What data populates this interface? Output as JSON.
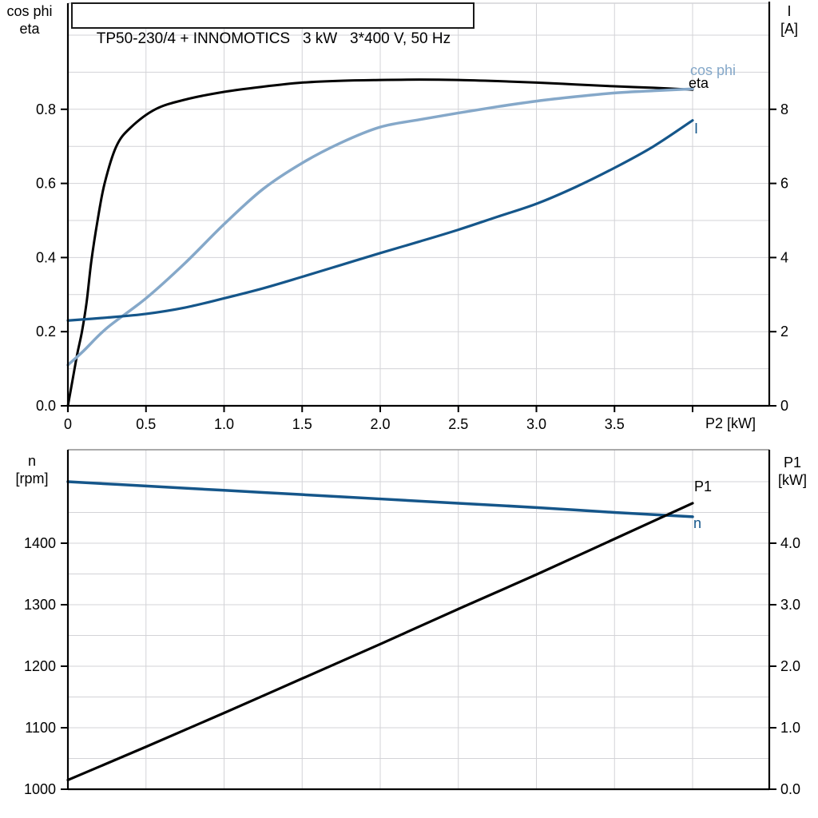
{
  "title": "TP50-230/4 + INNOMOTICS   3 kW   3*400 V, 50 Hz",
  "colors": {
    "black": "#000000",
    "light_blue": "#85a8c9",
    "dark_blue": "#15568a",
    "gridline": "#d3d3d7",
    "frame_gray": "#8e8e8e",
    "axis": "#000000"
  },
  "top_chart": {
    "left_axis_label": [
      "cos phi",
      "eta"
    ],
    "right_axis_label": [
      "I",
      "[A]"
    ],
    "x_axis_label": "P2 [kW]",
    "left_tick_labels": [
      "0.0",
      "0.2",
      "0.4",
      "0.6",
      "0.8"
    ],
    "left_tick_values": [
      0.0,
      0.2,
      0.4,
      0.6,
      0.8
    ],
    "right_tick_labels": [
      "0",
      "2",
      "4",
      "6",
      "8"
    ],
    "right_tick_values": [
      0,
      2,
      4,
      6,
      8
    ],
    "x_tick_labels": [
      "0",
      "0.5",
      "1.0",
      "1.5",
      "2.0",
      "2.5",
      "3.0",
      "3.5",
      ""
    ],
    "x_tick_values": [
      0,
      0.5,
      1.0,
      1.5,
      2.0,
      2.5,
      3.0,
      3.5,
      4.0
    ],
    "curve_labels": {
      "cos_phi": "cos phi",
      "eta": "eta",
      "current": "I"
    }
  },
  "bottom_chart": {
    "left_axis_label": [
      "n",
      "[rpm]"
    ],
    "right_axis_label": [
      "P1",
      "[kW]"
    ],
    "left_tick_labels": [
      "1000",
      "1100",
      "1200",
      "1300",
      "1400"
    ],
    "left_tick_values": [
      1000,
      1100,
      1200,
      1300,
      1400
    ],
    "right_tick_labels": [
      "0.0",
      "1.0",
      "2.0",
      "3.0",
      "4.0"
    ],
    "right_tick_values": [
      0,
      1,
      2,
      3,
      4
    ],
    "curve_labels": {
      "p1": "P1",
      "n": "n"
    }
  },
  "chart_data": [
    {
      "type": "line",
      "title": "TP50-230/4 + INNOMOTICS   3 kW   3*400 V, 50 Hz",
      "xlabel": "P2 [kW]",
      "xlim": [
        0,
        4.49
      ],
      "left_axis": {
        "label": "cos phi / eta",
        "lim": [
          0,
          1.086
        ],
        "ticks": [
          0,
          0.2,
          0.4,
          0.6,
          0.8
        ],
        "grid_step": 0.1
      },
      "right_axis": {
        "label": "I [A]",
        "lim": [
          0,
          10.86
        ],
        "ticks": [
          0,
          2,
          4,
          6,
          8
        ]
      },
      "x_grid_step": 0.5,
      "grid": true,
      "series": [
        {
          "name": "eta",
          "axis": "left",
          "color": "#000000",
          "width": 3,
          "points": [
            [
              0,
              0
            ],
            [
              0.03,
              0.07
            ],
            [
              0.06,
              0.14
            ],
            [
              0.09,
              0.2
            ],
            [
              0.12,
              0.28
            ],
            [
              0.15,
              0.39
            ],
            [
              0.19,
              0.5
            ],
            [
              0.235,
              0.6
            ],
            [
              0.31,
              0.7
            ],
            [
              0.4,
              0.75
            ],
            [
              0.56,
              0.8
            ],
            [
              0.75,
              0.826
            ],
            [
              1.0,
              0.847
            ],
            [
              1.25,
              0.861
            ],
            [
              1.5,
              0.872
            ],
            [
              1.75,
              0.877
            ],
            [
              2.0,
              0.879
            ],
            [
              2.25,
              0.88
            ],
            [
              2.5,
              0.879
            ],
            [
              2.75,
              0.876
            ],
            [
              3.0,
              0.872
            ],
            [
              3.25,
              0.867
            ],
            [
              3.5,
              0.862
            ],
            [
              3.75,
              0.858
            ],
            [
              4.0,
              0.853
            ]
          ]
        },
        {
          "name": "cos phi",
          "axis": "left",
          "color": "#85a8c9",
          "width": 3.5,
          "points": [
            [
              0,
              0.11
            ],
            [
              0.1,
              0.148
            ],
            [
              0.25,
              0.21
            ],
            [
              0.5,
              0.29
            ],
            [
              0.75,
              0.385
            ],
            [
              1.0,
              0.49
            ],
            [
              1.25,
              0.585
            ],
            [
              1.5,
              0.655
            ],
            [
              1.75,
              0.71
            ],
            [
              2.0,
              0.752
            ],
            [
              2.25,
              0.772
            ],
            [
              2.5,
              0.79
            ],
            [
              2.75,
              0.807
            ],
            [
              3.0,
              0.822
            ],
            [
              3.25,
              0.834
            ],
            [
              3.5,
              0.844
            ],
            [
              3.75,
              0.85
            ],
            [
              4.0,
              0.855
            ]
          ]
        },
        {
          "name": "I",
          "axis": "right",
          "color": "#15568a",
          "width": 3.2,
          "points": [
            [
              0,
              2.3
            ],
            [
              0.25,
              2.38
            ],
            [
              0.5,
              2.48
            ],
            [
              0.75,
              2.65
            ],
            [
              1.0,
              2.9
            ],
            [
              1.25,
              3.17
            ],
            [
              1.5,
              3.48
            ],
            [
              1.75,
              3.8
            ],
            [
              2.0,
              4.12
            ],
            [
              2.25,
              4.43
            ],
            [
              2.5,
              4.75
            ],
            [
              2.75,
              5.1
            ],
            [
              3.0,
              5.45
            ],
            [
              3.25,
              5.9
            ],
            [
              3.5,
              6.42
            ],
            [
              3.75,
              7.0
            ],
            [
              4.0,
              7.7
            ]
          ]
        }
      ]
    },
    {
      "type": "line",
      "xlabel": "P2 [kW]",
      "xlim": [
        0,
        4.49
      ],
      "left_axis": {
        "label": "n [rpm]",
        "lim": [
          1000,
          1552
        ],
        "ticks": [
          1000,
          1100,
          1200,
          1300,
          1400
        ],
        "grid_step": 50
      },
      "right_axis": {
        "label": "P1 [kW]",
        "lim": [
          0,
          5.52
        ],
        "ticks": [
          0,
          1,
          2,
          3,
          4
        ]
      },
      "x_grid_step": 0.5,
      "grid": true,
      "series": [
        {
          "name": "n",
          "axis": "left",
          "color": "#15568a",
          "width": 3.5,
          "points": [
            [
              0,
              1500
            ],
            [
              0.5,
              1493
            ],
            [
              1.0,
              1486
            ],
            [
              1.5,
              1479
            ],
            [
              2.0,
              1472
            ],
            [
              2.5,
              1465
            ],
            [
              3.0,
              1458
            ],
            [
              3.5,
              1450
            ],
            [
              4.0,
              1443
            ]
          ]
        },
        {
          "name": "P1",
          "axis": "right",
          "color": "#000000",
          "width": 3.2,
          "points": [
            [
              0,
              0.15
            ],
            [
              0.5,
              0.69
            ],
            [
              1.0,
              1.24
            ],
            [
              1.5,
              1.8
            ],
            [
              2.0,
              2.36
            ],
            [
              2.5,
              2.93
            ],
            [
              3.0,
              3.49
            ],
            [
              3.5,
              4.07
            ],
            [
              4.0,
              4.65
            ]
          ]
        }
      ]
    }
  ]
}
